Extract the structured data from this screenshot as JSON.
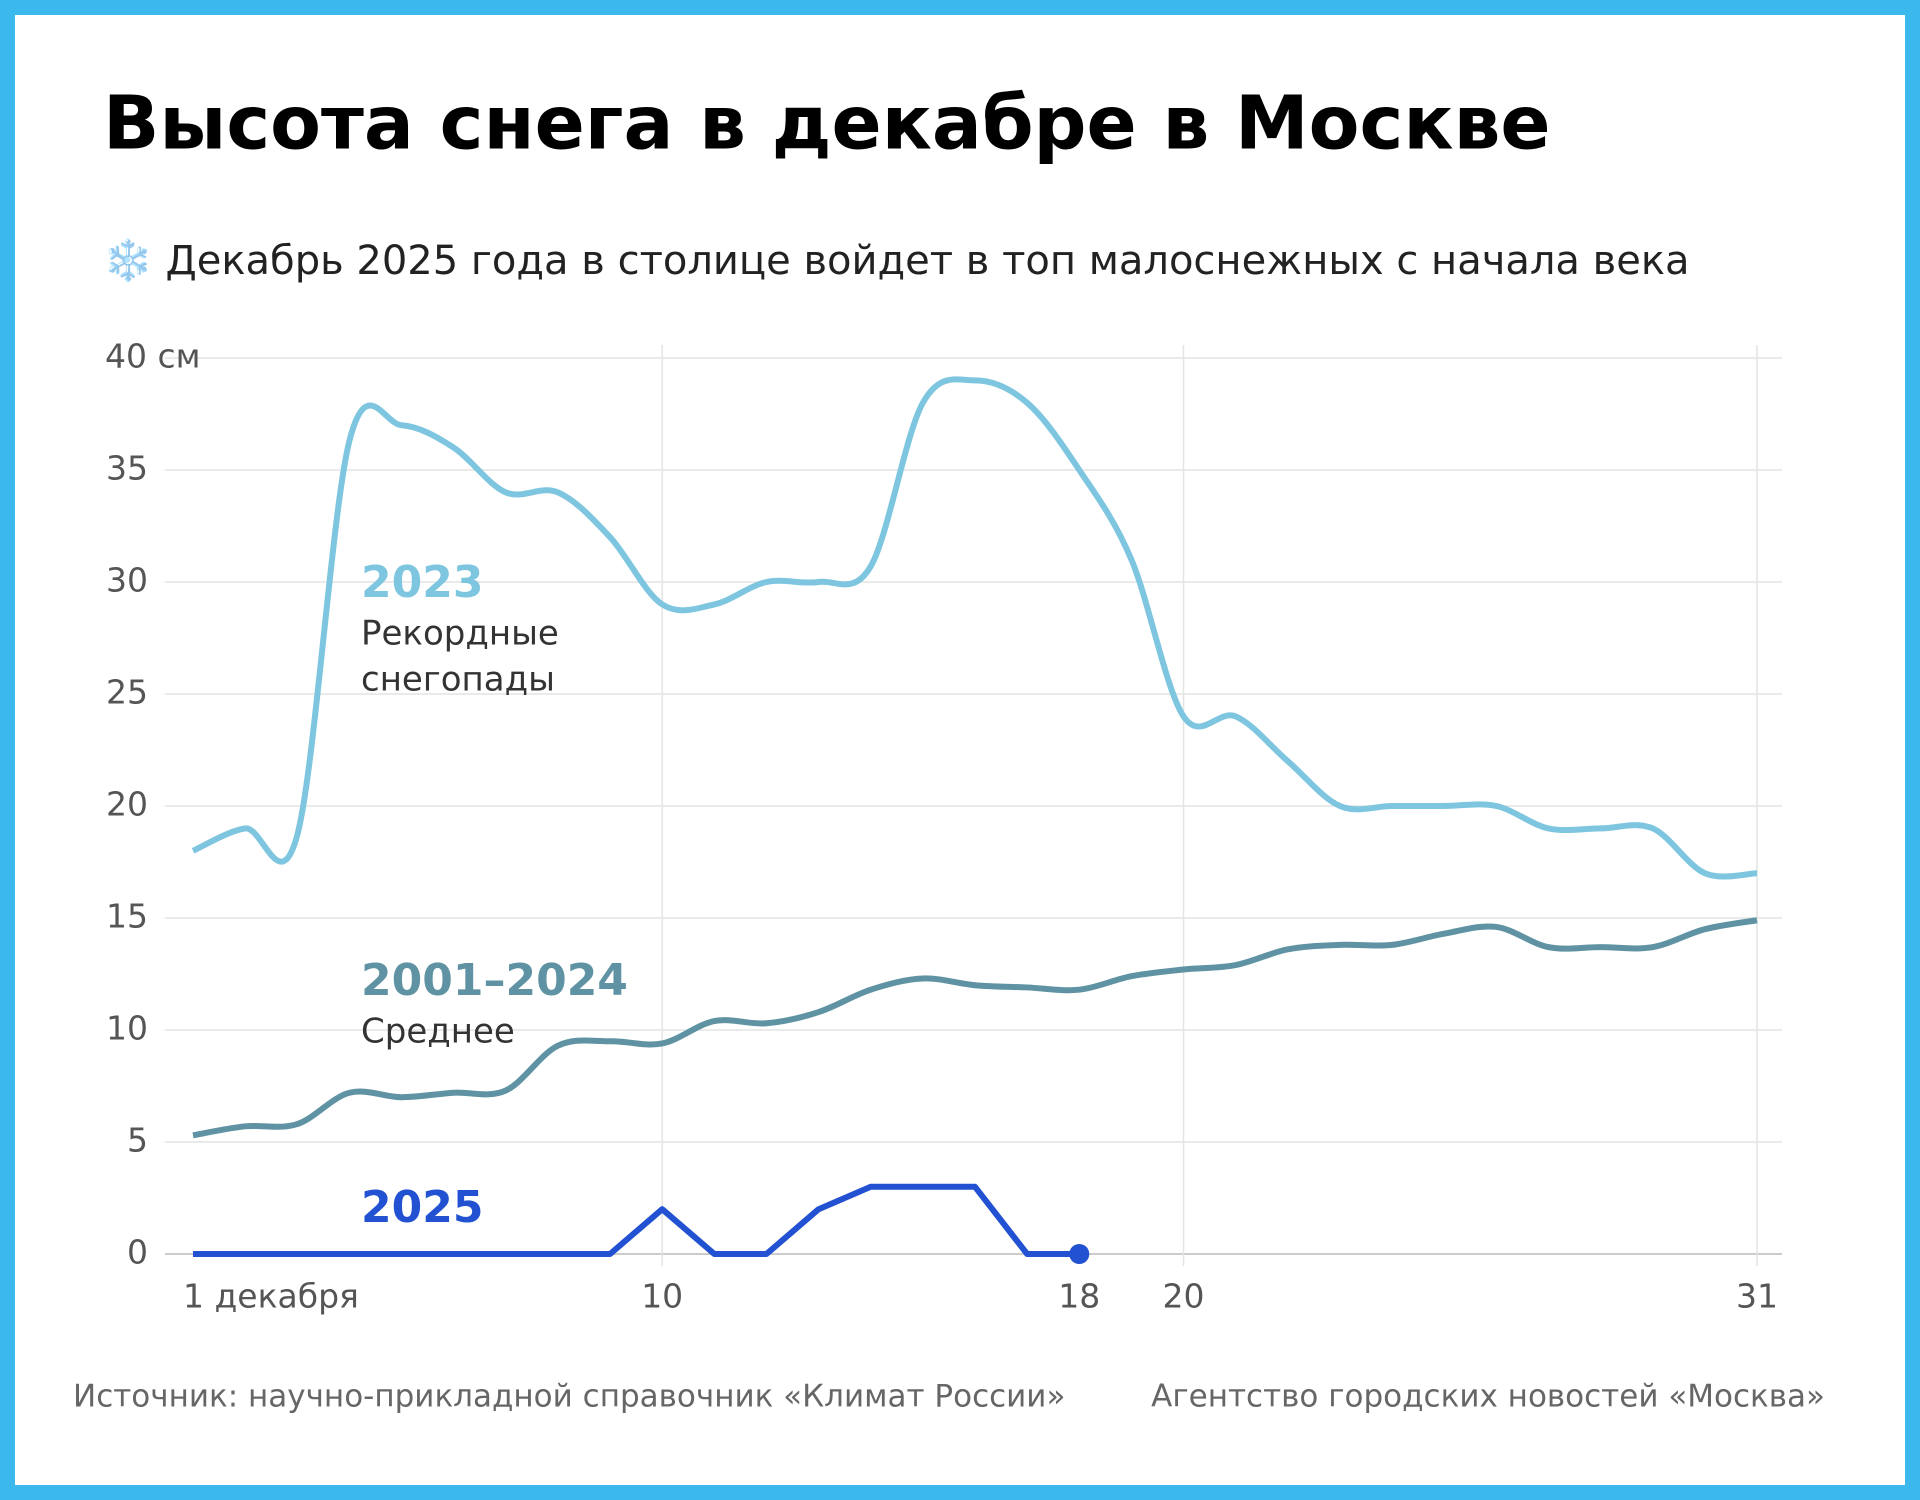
{
  "chart_data": {
    "type": "line",
    "title": "Высота снега в декабре в Москве",
    "subtitle": "❄️ Декабрь 2025 года в столице войдет в топ малоснежных с начала века",
    "x": [
      1,
      2,
      3,
      4,
      5,
      6,
      7,
      8,
      9,
      10,
      11,
      12,
      13,
      14,
      15,
      16,
      17,
      18,
      19,
      20,
      21,
      22,
      23,
      24,
      25,
      26,
      27,
      28,
      29,
      30,
      31
    ],
    "series": [
      {
        "name": "2023",
        "color": "#7ec6e0",
        "smooth": true,
        "annotation": [
          "Рекордные",
          "снегопады"
        ],
        "values": [
          18,
          19,
          18.7,
          36.3,
          37,
          36,
          34,
          34,
          32,
          29,
          29,
          30,
          30,
          30.7,
          38,
          39,
          38,
          35,
          31,
          24,
          24,
          22,
          20,
          20,
          20,
          20,
          19,
          19,
          19,
          17,
          17
        ]
      },
      {
        "name": "2001–2024",
        "color": "#5f93a3",
        "smooth": true,
        "annotation": [
          "Среднее"
        ],
        "values": [
          5.3,
          5.7,
          5.8,
          7.2,
          7,
          7.2,
          7.3,
          9.3,
          9.5,
          9.4,
          10.4,
          10.3,
          10.8,
          11.8,
          12.3,
          12,
          11.9,
          11.8,
          12.4,
          12.7,
          12.9,
          13.6,
          13.8,
          13.8,
          14.3,
          14.6,
          13.7,
          13.7,
          13.7,
          14.5,
          14.9
        ]
      },
      {
        "name": "2025",
        "color": "#2251d1",
        "smooth": false,
        "end_marker": true,
        "values": [
          0,
          0,
          0,
          0,
          0,
          0,
          0,
          0,
          0,
          2,
          0,
          0,
          2,
          3,
          3,
          3,
          0,
          0,
          null,
          null,
          null,
          null,
          null,
          null,
          null,
          null,
          null,
          null,
          null,
          null,
          null
        ]
      }
    ],
    "xlim": [
      1,
      31
    ],
    "xticks": [
      {
        "value": 1,
        "label": "1 декабря"
      },
      10,
      18,
      20,
      31
    ],
    "ylim": [
      0,
      40
    ],
    "yticks": [
      0,
      5,
      10,
      15,
      20,
      25,
      30,
      35,
      {
        "value": 40,
        "label": "40 см"
      }
    ],
    "grid": true,
    "source": "Источник: научно-прикладной справочник «Климат России»",
    "credit": "Агентство городских новостей «Москва»"
  }
}
